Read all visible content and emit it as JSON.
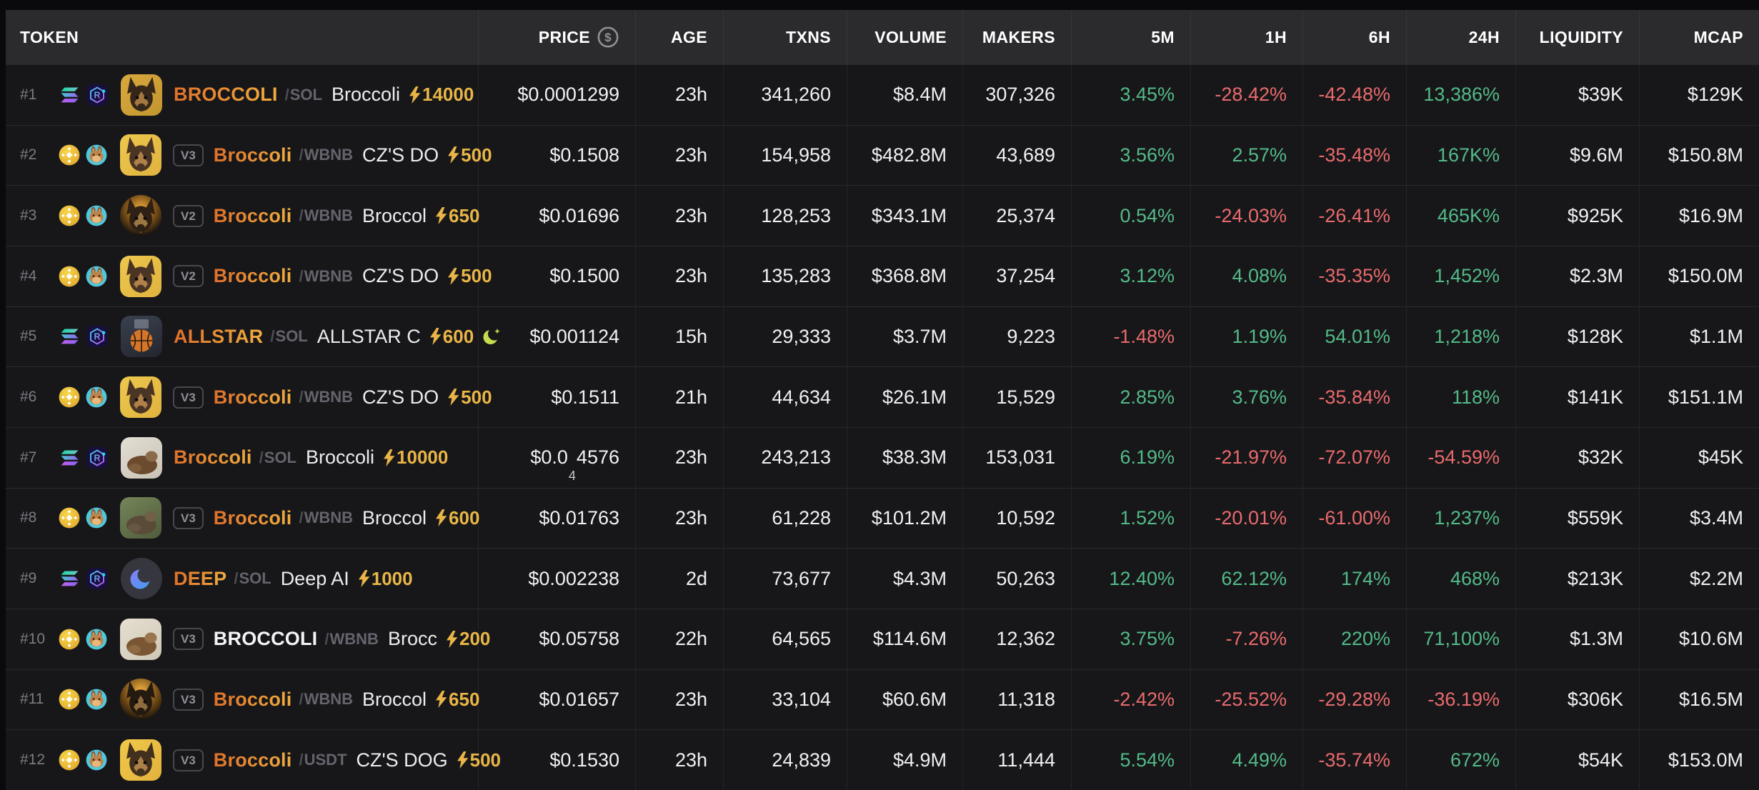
{
  "header": {
    "columns": [
      "TOKEN",
      "PRICE",
      "AGE",
      "TXNS",
      "VOLUME",
      "MAKERS",
      "5M",
      "1H",
      "6H",
      "24H",
      "LIQUIDITY",
      "MCAP"
    ]
  },
  "colors": {
    "positive": "#53ba87",
    "negative": "#e96a6c",
    "boost_gold": "#e9b546",
    "symbol_orange_start": "#e0702a",
    "symbol_orange_end": "#f0ad3e",
    "row_bg": "#17171a",
    "header_bg": "#2b2b2e"
  },
  "rows": [
    {
      "rank": "#1",
      "chain": "solana",
      "dex": "raydium",
      "version": "",
      "symbol": "BROCCOLI",
      "symbol_style": "orange",
      "quote": "SOL",
      "name": "Broccoli",
      "boost": "14000",
      "moon": false,
      "avatar": {
        "shape": "square",
        "kind": "dog",
        "bg": "linear-gradient(135deg,#d8a93e,#c3952f)",
        "fg": "#35261a",
        "fg2": "#a3773f"
      },
      "price": {
        "main": "$0.0001299"
      },
      "age": "23h",
      "txns": "341,260",
      "volume": "$8.4M",
      "makers": "307,326",
      "m5": "3.45%",
      "h1": "-28.42%",
      "h6": "-42.48%",
      "h24": "13,386%",
      "liquidity": "$39K",
      "mcap": "$129K"
    },
    {
      "rank": "#2",
      "chain": "bnb",
      "dex": "pancakeswap",
      "version": "V3",
      "symbol": "Broccoli",
      "symbol_style": "orange",
      "quote": "WBNB",
      "name": "CZ'S DO",
      "boost": "500",
      "moon": false,
      "avatar": {
        "shape": "square",
        "kind": "dog",
        "bg": "linear-gradient(135deg,#edc84e,#e0b33e)",
        "fg": "#4a3424",
        "fg2": "#b08049"
      },
      "price": {
        "main": "$0.1508"
      },
      "age": "23h",
      "txns": "154,958",
      "volume": "$482.8M",
      "makers": "43,689",
      "m5": "3.56%",
      "h1": "2.57%",
      "h6": "-35.48%",
      "h24": "167K%",
      "liquidity": "$9.6M",
      "mcap": "$150.8M"
    },
    {
      "rank": "#3",
      "chain": "bnb",
      "dex": "pancakeswap",
      "version": "V2",
      "symbol": "Broccoli",
      "symbol_style": "orange",
      "quote": "WBNB",
      "name": "Broccol",
      "boost": "650",
      "moon": false,
      "avatar": {
        "shape": "circle",
        "kind": "dog",
        "bg": "radial-gradient(circle at 50% 35%,#f2b13f 0%,#7a4f17 45%,#141210 78%)",
        "fg": "#2e2014",
        "fg2": "#9c7743"
      },
      "price": {
        "main": "$0.01696"
      },
      "age": "23h",
      "txns": "128,253",
      "volume": "$343.1M",
      "makers": "25,374",
      "m5": "0.54%",
      "h1": "-24.03%",
      "h6": "-26.41%",
      "h24": "465K%",
      "liquidity": "$925K",
      "mcap": "$16.9M"
    },
    {
      "rank": "#4",
      "chain": "bnb",
      "dex": "pancakeswap",
      "version": "V2",
      "symbol": "Broccoli",
      "symbol_style": "orange",
      "quote": "WBNB",
      "name": "CZ'S DO",
      "boost": "500",
      "moon": false,
      "avatar": {
        "shape": "square",
        "kind": "dog",
        "bg": "linear-gradient(135deg,#edc84e,#e0b33e)",
        "fg": "#4a3424",
        "fg2": "#b08049"
      },
      "price": {
        "main": "$0.1500"
      },
      "age": "23h",
      "txns": "135,283",
      "volume": "$368.8M",
      "makers": "37,254",
      "m5": "3.12%",
      "h1": "4.08%",
      "h6": "-35.35%",
      "h24": "1,452%",
      "liquidity": "$2.3M",
      "mcap": "$150.0M"
    },
    {
      "rank": "#5",
      "chain": "solana",
      "dex": "raydium",
      "version": "",
      "symbol": "ALLSTAR",
      "symbol_style": "orange",
      "quote": "SOL",
      "name": "ALLSTAR C",
      "boost": "600",
      "moon": true,
      "avatar": {
        "shape": "square",
        "kind": "basketball",
        "bg": "linear-gradient(160deg,#3a414f,#23262e)",
        "fg": "#d4762a",
        "fg2": "#27180c"
      },
      "price": {
        "main": "$0.001124"
      },
      "age": "15h",
      "txns": "29,333",
      "volume": "$3.7M",
      "makers": "9,223",
      "m5": "-1.48%",
      "h1": "1.19%",
      "h6": "54.01%",
      "h24": "1,218%",
      "liquidity": "$128K",
      "mcap": "$1.1M"
    },
    {
      "rank": "#6",
      "chain": "bnb",
      "dex": "pancakeswap",
      "version": "V3",
      "symbol": "Broccoli",
      "symbol_style": "orange",
      "quote": "WBNB",
      "name": "CZ'S DO",
      "boost": "500",
      "moon": false,
      "avatar": {
        "shape": "square",
        "kind": "dog",
        "bg": "linear-gradient(135deg,#edc84e,#e0b33e)",
        "fg": "#4a3424",
        "fg2": "#b08049"
      },
      "price": {
        "main": "$0.1511"
      },
      "age": "21h",
      "txns": "44,634",
      "volume": "$26.1M",
      "makers": "15,529",
      "m5": "2.85%",
      "h1": "3.76%",
      "h6": "-35.84%",
      "h24": "118%",
      "liquidity": "$141K",
      "mcap": "$151.1M"
    },
    {
      "rank": "#7",
      "chain": "solana",
      "dex": "raydium",
      "version": "",
      "symbol": "Broccoli",
      "symbol_style": "orange",
      "quote": "SOL",
      "name": "Broccoli",
      "boost": "10000",
      "moon": false,
      "avatar": {
        "shape": "square",
        "kind": "photo",
        "bg": "linear-gradient(145deg,#e3ded4,#c9c2b4)",
        "fg": "#6b4a2e",
        "fg2": "#8a6a48"
      },
      "price": {
        "main": "$0.0",
        "sub": "4",
        "rest": "4576"
      },
      "age": "23h",
      "txns": "243,213",
      "volume": "$38.3M",
      "makers": "153,031",
      "m5": "6.19%",
      "h1": "-21.97%",
      "h6": "-72.07%",
      "h24": "-54.59%",
      "liquidity": "$32K",
      "mcap": "$45K"
    },
    {
      "rank": "#8",
      "chain": "bnb",
      "dex": "pancakeswap",
      "version": "V3",
      "symbol": "Broccoli",
      "symbol_style": "orange",
      "quote": "WBNB",
      "name": "Broccol",
      "boost": "600",
      "moon": false,
      "avatar": {
        "shape": "square",
        "kind": "photo",
        "bg": "linear-gradient(145deg,#77855a,#4e5c3c)",
        "fg": "#5a4a38",
        "fg2": "#70604a"
      },
      "price": {
        "main": "$0.01763"
      },
      "age": "23h",
      "txns": "61,228",
      "volume": "$101.2M",
      "makers": "10,592",
      "m5": "1.52%",
      "h1": "-20.01%",
      "h6": "-61.00%",
      "h24": "1,237%",
      "liquidity": "$559K",
      "mcap": "$3.4M"
    },
    {
      "rank": "#9",
      "chain": "solana",
      "dex": "raydium",
      "version": "",
      "symbol": "DEEP",
      "symbol_style": "orange",
      "quote": "SOL",
      "name": "Deep AI",
      "boost": "1000",
      "moon": false,
      "avatar": {
        "shape": "circle",
        "kind": "swoosh",
        "bg": "#36363e",
        "fg": "#7b6cf5",
        "fg2": "#3f9df0"
      },
      "price": {
        "main": "$0.002238"
      },
      "age": "2d",
      "txns": "73,677",
      "volume": "$4.3M",
      "makers": "50,263",
      "m5": "12.40%",
      "h1": "62.12%",
      "h6": "174%",
      "h24": "468%",
      "liquidity": "$213K",
      "mcap": "$2.2M"
    },
    {
      "rank": "#10",
      "chain": "bnb",
      "dex": "pancakeswap",
      "version": "V3",
      "symbol": "BROCCOLI",
      "symbol_style": "white",
      "quote": "WBNB",
      "name": "Brocc",
      "boost": "200",
      "moon": false,
      "avatar": {
        "shape": "square",
        "kind": "photo",
        "bg": "linear-gradient(145deg,#e6e0d2,#cfc6b6)",
        "fg": "#7a5634",
        "fg2": "#9a7650"
      },
      "price": {
        "main": "$0.05758"
      },
      "age": "22h",
      "txns": "64,565",
      "volume": "$114.6M",
      "makers": "12,362",
      "m5": "3.75%",
      "h1": "-7.26%",
      "h6": "220%",
      "h24": "71,100%",
      "liquidity": "$1.3M",
      "mcap": "$10.6M"
    },
    {
      "rank": "#11",
      "chain": "bnb",
      "dex": "pancakeswap",
      "version": "V3",
      "symbol": "Broccoli",
      "symbol_style": "orange",
      "quote": "WBNB",
      "name": "Broccol",
      "boost": "650",
      "moon": false,
      "avatar": {
        "shape": "circle",
        "kind": "dog",
        "bg": "radial-gradient(circle at 50% 30%,#f2b13f 0%,#6b4514 52%,#17130e 82%)",
        "fg": "#241a10",
        "fg2": "#8f6c3c"
      },
      "price": {
        "main": "$0.01657"
      },
      "age": "23h",
      "txns": "33,104",
      "volume": "$60.6M",
      "makers": "11,318",
      "m5": "-2.42%",
      "h1": "-25.52%",
      "h6": "-29.28%",
      "h24": "-36.19%",
      "liquidity": "$306K",
      "mcap": "$16.5M"
    },
    {
      "rank": "#12",
      "chain": "bnb",
      "dex": "pancakeswap",
      "version": "V3",
      "symbol": "Broccoli",
      "symbol_style": "orange",
      "quote": "USDT",
      "name": "CZ'S DOG",
      "boost": "500",
      "moon": false,
      "avatar": {
        "shape": "square",
        "kind": "dog",
        "bg": "linear-gradient(135deg,#f0c94a,#e2b23c)",
        "fg": "#42301e",
        "fg2": "#ad7f49"
      },
      "price": {
        "main": "$0.1530"
      },
      "age": "23h",
      "txns": "24,839",
      "volume": "$4.9M",
      "makers": "11,444",
      "m5": "5.54%",
      "h1": "4.49%",
      "h6": "-35.74%",
      "h24": "672%",
      "liquidity": "$54K",
      "mcap": "$153.0M"
    }
  ]
}
